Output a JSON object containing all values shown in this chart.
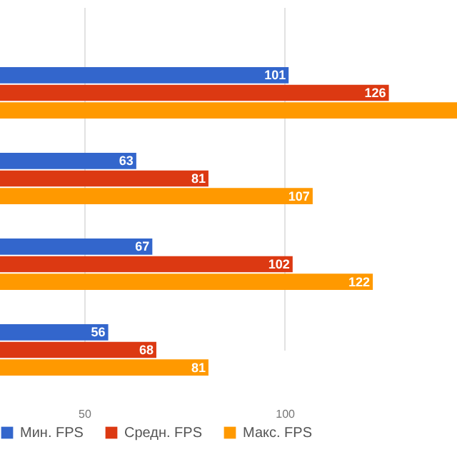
{
  "chart_data": {
    "type": "bar",
    "orientation": "horizontal",
    "categories": [
      null,
      null,
      null,
      null
    ],
    "series": [
      {
        "name": "Мин. FPS",
        "color": "#3366cc",
        "values": [
          101,
          63,
          67,
          56
        ],
        "value_labels": [
          "101",
          "63",
          "67",
          "56"
        ]
      },
      {
        "name": "Средн. FPS",
        "color": "#dc3912",
        "values": [
          126,
          81,
          102,
          68
        ],
        "value_labels": [
          "126",
          "81",
          "102",
          "68"
        ]
      },
      {
        "name": "Макс. FPS",
        "color": "#ff9900",
        "values": [
          143,
          107,
          122,
          81
        ],
        "value_labels": [
          null,
          "107",
          "122",
          "81"
        ]
      }
    ],
    "xlim": [
      29,
      143
    ],
    "xticks": [
      50,
      100
    ],
    "grid": "x",
    "legend": "bottom"
  }
}
